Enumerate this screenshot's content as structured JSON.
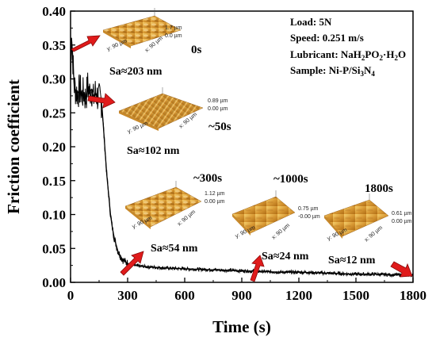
{
  "chart_data": {
    "type": "line",
    "title": "",
    "xlabel": "Time (s)",
    "ylabel": "Friction coefficient",
    "xlim": [
      0,
      1800
    ],
    "ylim": [
      0,
      0.4
    ],
    "x_ticks": [
      "0",
      "300",
      "600",
      "900",
      "1200",
      "1500",
      "1800"
    ],
    "y_ticks": [
      "0.00",
      "0.05",
      "0.10",
      "0.15",
      "0.20",
      "0.25",
      "0.30",
      "0.35",
      "0.40"
    ],
    "series": [
      {
        "color": "#000000",
        "x": [
          0,
          5,
          10,
          15,
          20,
          30,
          40,
          50,
          60,
          70,
          80,
          90,
          100,
          110,
          120,
          130,
          140,
          150,
          160,
          165,
          170,
          180,
          190,
          200,
          210,
          220,
          230,
          240,
          250,
          260,
          270,
          280,
          290,
          300,
          320,
          340,
          360,
          400,
          450,
          500,
          600,
          700,
          800,
          900,
          1000,
          1100,
          1200,
          1300,
          1400,
          1500,
          1600,
          1700,
          1800
        ],
        "y": [
          0.3,
          0.36,
          0.34,
          0.31,
          0.29,
          0.28,
          0.28,
          0.285,
          0.275,
          0.28,
          0.27,
          0.29,
          0.28,
          0.285,
          0.27,
          0.28,
          0.275,
          0.27,
          0.27,
          0.26,
          0.24,
          0.2,
          0.16,
          0.13,
          0.1,
          0.08,
          0.065,
          0.055,
          0.045,
          0.04,
          0.035,
          0.032,
          0.03,
          0.028,
          0.026,
          0.025,
          0.024,
          0.023,
          0.022,
          0.021,
          0.02,
          0.019,
          0.018,
          0.017,
          0.016,
          0.015,
          0.015,
          0.014,
          0.013,
          0.012,
          0.012,
          0.011,
          0.011
        ]
      }
    ],
    "legend": "none",
    "grid": false
  },
  "test_conditions": {
    "load": "Load: 5N",
    "speed": "Speed: 0.251 m/s",
    "lubricant_prefix": "Lubricant: NaH",
    "lubricant_sub1": "2",
    "lubricant_mid": "PO",
    "lubricant_sub2": "2",
    "lubricant_suffix": "·H",
    "lubricant_sub3": "2",
    "lubricant_end": "O",
    "sample_prefix": "Sample: Ni-P/Si",
    "sample_sub1": "3",
    "sample_mid": "N",
    "sample_sub2": "4"
  },
  "annotations": [
    {
      "id": "a0",
      "time": "0s",
      "sa": "Sa≈203 nm",
      "z_max": "1.7 µm",
      "z_min": "0.0 µm",
      "y_axis": "y: 90 µm",
      "x_axis": "x: 90 µm",
      "target_x": 0
    },
    {
      "id": "a50",
      "time": "~50s",
      "sa": "Sa≈102 nm",
      "z_max": "0.89 µm",
      "z_min": "0.00 µm",
      "y_axis": "y: 90 µm",
      "x_axis": "x: 90 µm",
      "target_x": 50
    },
    {
      "id": "a300",
      "time": "~300s",
      "sa": "Sa≈54 nm",
      "z_max": "1.12 µm",
      "z_min": "0.00 µm",
      "y_axis": "y: 90 µm",
      "x_axis": "x: 90 µm",
      "target_x": 300
    },
    {
      "id": "a1000",
      "time": "~1000s",
      "sa": "Sa≈24 nm",
      "z_max": "0.75 µm",
      "z_min": "-0.00 µm",
      "y_axis": "y: 90 µm",
      "x_axis": "x: 90 µm",
      "target_x": 1000
    },
    {
      "id": "a1800",
      "time": "1800s",
      "sa": "Sa≈12 nm",
      "z_max": "0.61 µm",
      "z_min": "0.00 µm",
      "y_axis": "y: 90 µm",
      "x_axis": "x: 90 µm",
      "target_x": 1800
    }
  ],
  "colors": {
    "arrow_fill": "#e01b1b",
    "arrow_stroke": "#8a0a0a",
    "surface_light": "#f2c25a",
    "surface_dark": "#b8781c"
  }
}
